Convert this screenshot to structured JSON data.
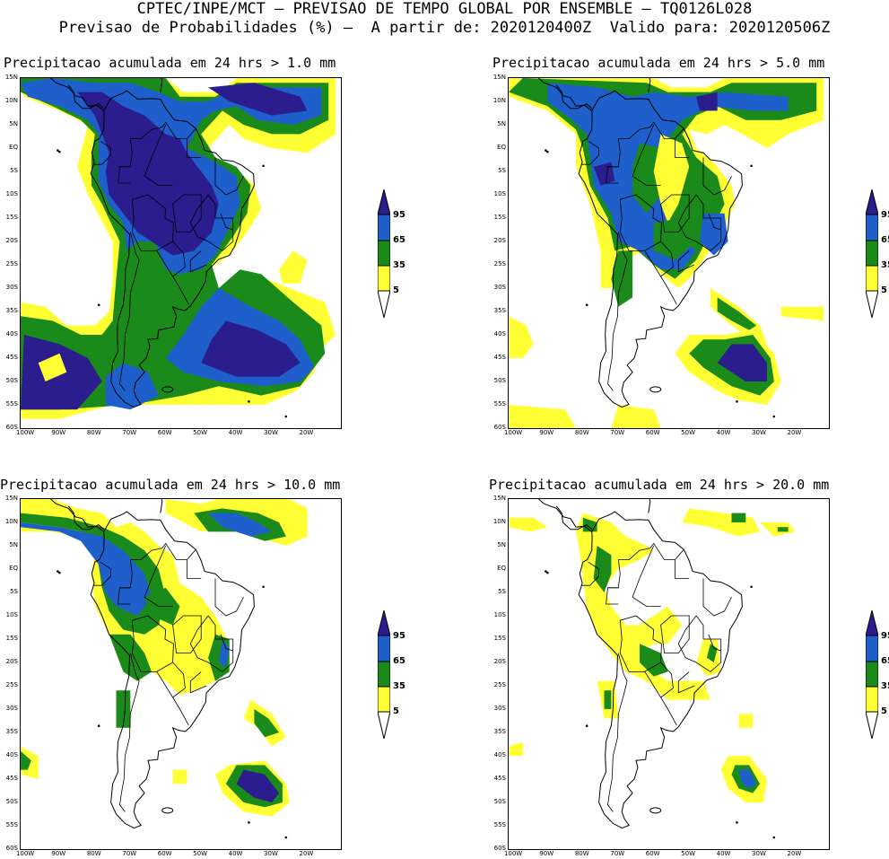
{
  "header": {
    "line1": "CPTEC/INPE/MCT – PREVISAO DE TEMPO GLOBAL POR ENSEMBLE – TQ0126L028",
    "line2": "Previsao de Probabilidades (%) –  A partir de: 2020120400Z  Valido para: 2020120506Z"
  },
  "axes": {
    "y_labels": [
      "15N",
      "10N",
      "5N",
      "EQ",
      "5S",
      "10S",
      "15S",
      "20S",
      "25S",
      "30S",
      "35S",
      "40S",
      "45S",
      "50S",
      "55S",
      "60S"
    ],
    "x_labels": [
      "100W",
      "90W",
      "80W",
      "70W",
      "60W",
      "50W",
      "40W",
      "30W",
      "20W"
    ]
  },
  "colorbar": {
    "labels": [
      "95",
      "65",
      "35",
      "5"
    ],
    "colors": {
      "c95": "#2b1d8e",
      "c65": "#1f5fcc",
      "c35": "#1a8a1a",
      "c5": "#ffff33",
      "bg": "#ffffff",
      "land": "#000000"
    }
  },
  "panels": [
    {
      "title": "Precipitacao acumulada em 24 hrs > 1.0 mm"
    },
    {
      "title": "Precipitacao acumulada em 24 hrs > 5.0 mm"
    },
    {
      "title": "Precipitacao acumulada em 24 hrs > 10.0 mm"
    },
    {
      "title": "Precipitacao acumulada em 24 hrs > 20.0 mm"
    }
  ]
}
